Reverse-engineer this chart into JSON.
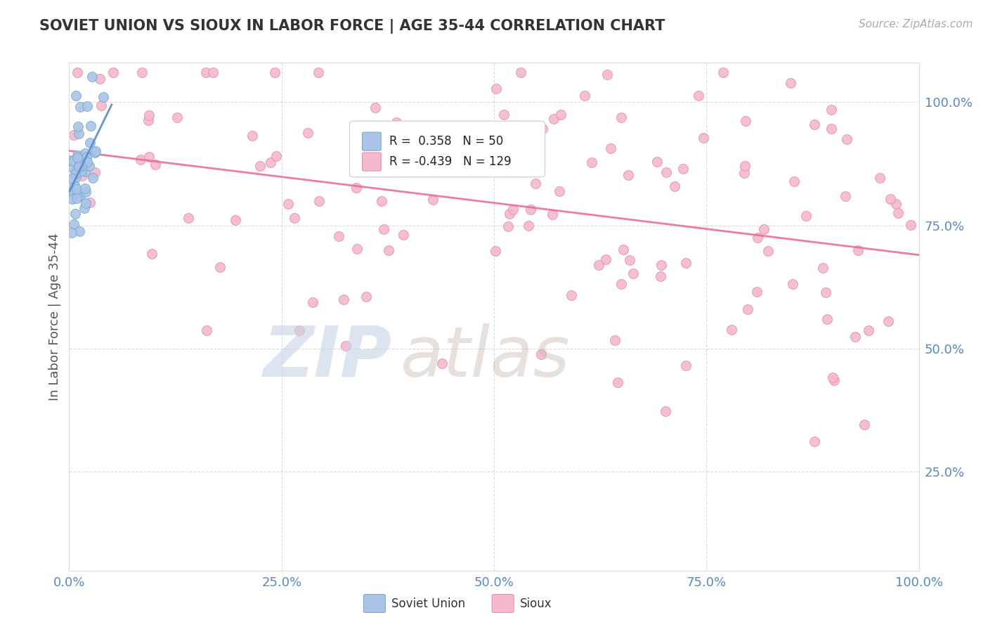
{
  "title": "SOVIET UNION VS SIOUX IN LABOR FORCE | AGE 35-44 CORRELATION CHART",
  "source": "Source: ZipAtlas.com",
  "ylabel": "In Labor Force | Age 35-44",
  "xlim": [
    0.0,
    1.0
  ],
  "ylim": [
    0.05,
    1.08
  ],
  "yticks": [
    0.25,
    0.5,
    0.75,
    1.0
  ],
  "ytick_labels": [
    "25.0%",
    "50.0%",
    "75.0%",
    "100.0%"
  ],
  "xticks": [
    0.0,
    0.25,
    0.5,
    0.75,
    1.0
  ],
  "xtick_labels": [
    "0.0%",
    "25.0%",
    "50.0%",
    "75.0%",
    "100.0%"
  ],
  "soviet_R": 0.358,
  "soviet_N": 50,
  "sioux_R": -0.439,
  "sioux_N": 129,
  "soviet_color": "#aac4e8",
  "sioux_color": "#f5b8cc",
  "soviet_edge": "#7aaad0",
  "sioux_edge": "#e890aa",
  "trend_soviet_color": "#5588cc",
  "trend_sioux_color": "#e87090",
  "background_color": "#ffffff",
  "grid_color": "#cccccc",
  "title_color": "#333333",
  "tick_color": "#5588cc",
  "watermark_zip_color": "#c5d5e5",
  "watermark_atlas_color": "#c8bdb5"
}
